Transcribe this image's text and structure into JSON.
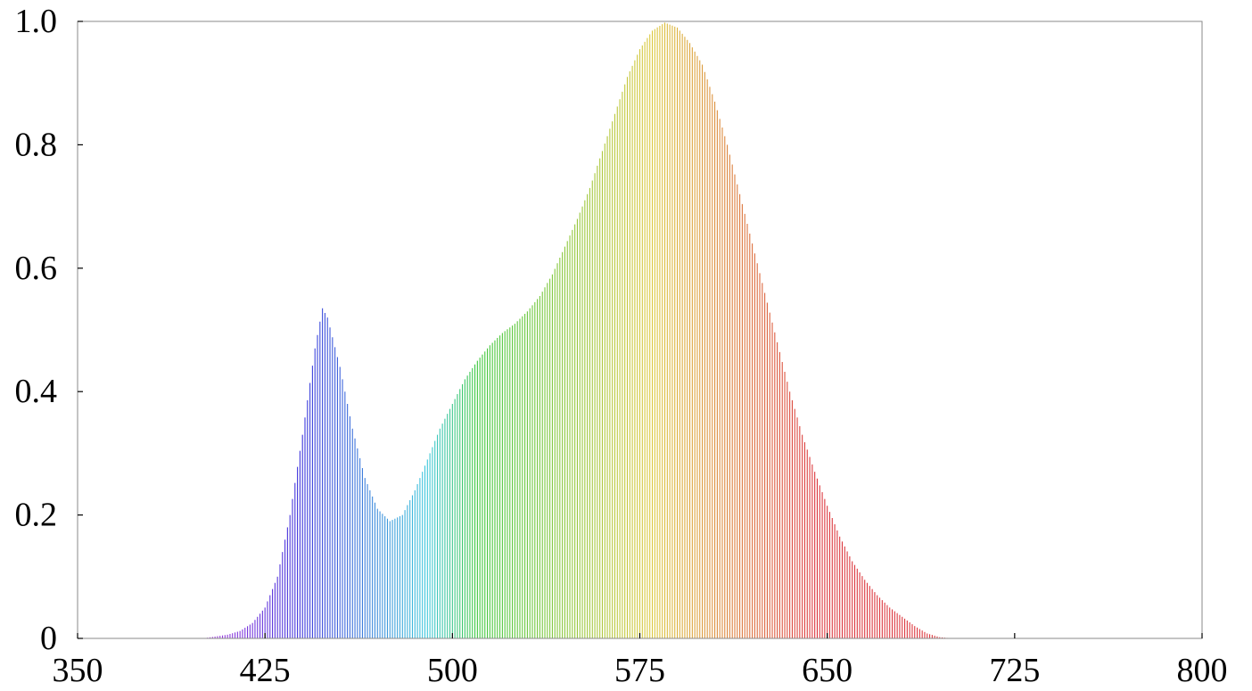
{
  "chart_data": {
    "type": "bar",
    "title": "",
    "xlabel": "",
    "ylabel": "",
    "xlim": [
      350,
      800
    ],
    "ylim": [
      0,
      1.0
    ],
    "grid": false,
    "x_ticks": [
      350,
      425,
      500,
      575,
      650,
      725,
      800
    ],
    "x_tick_labels": [
      "350",
      "425",
      "500",
      "575",
      "650",
      "725",
      "800"
    ],
    "y_ticks": [
      0,
      0.2,
      0.4,
      0.6,
      0.8,
      1.0
    ],
    "y_tick_labels": [
      "0",
      "0.2",
      "0.4",
      "0.6",
      "0.8",
      "1.0"
    ],
    "series": [
      {
        "x": [
          350,
          360,
          370,
          380,
          390,
          400,
          405,
          410,
          415,
          420,
          425,
          430,
          435,
          440,
          445,
          448,
          450,
          455,
          460,
          465,
          470,
          475,
          480,
          485,
          490,
          495,
          500,
          505,
          510,
          515,
          520,
          525,
          530,
          535,
          540,
          545,
          550,
          555,
          560,
          565,
          570,
          575,
          580,
          585,
          590,
          595,
          600,
          605,
          610,
          615,
          620,
          625,
          630,
          635,
          640,
          645,
          650,
          655,
          660,
          665,
          670,
          675,
          680,
          685,
          690,
          695,
          700,
          705,
          710,
          715,
          720,
          725,
          730,
          735,
          740,
          750,
          760,
          770,
          780,
          790,
          800
        ],
        "values": [
          0,
          0,
          0,
          0,
          0,
          0,
          0.003,
          0.006,
          0.012,
          0.025,
          0.05,
          0.1,
          0.2,
          0.33,
          0.47,
          0.535,
          0.52,
          0.44,
          0.34,
          0.26,
          0.21,
          0.19,
          0.2,
          0.24,
          0.29,
          0.34,
          0.38,
          0.42,
          0.45,
          0.475,
          0.495,
          0.51,
          0.53,
          0.555,
          0.59,
          0.635,
          0.68,
          0.73,
          0.79,
          0.85,
          0.91,
          0.955,
          0.985,
          0.998,
          0.99,
          0.965,
          0.93,
          0.87,
          0.8,
          0.72,
          0.64,
          0.56,
          0.48,
          0.4,
          0.33,
          0.27,
          0.215,
          0.165,
          0.125,
          0.095,
          0.07,
          0.05,
          0.035,
          0.02,
          0.008,
          0.002,
          0,
          0,
          0,
          0,
          0,
          0,
          0,
          0,
          0,
          0,
          0,
          0,
          0,
          0,
          0
        ]
      }
    ]
  }
}
